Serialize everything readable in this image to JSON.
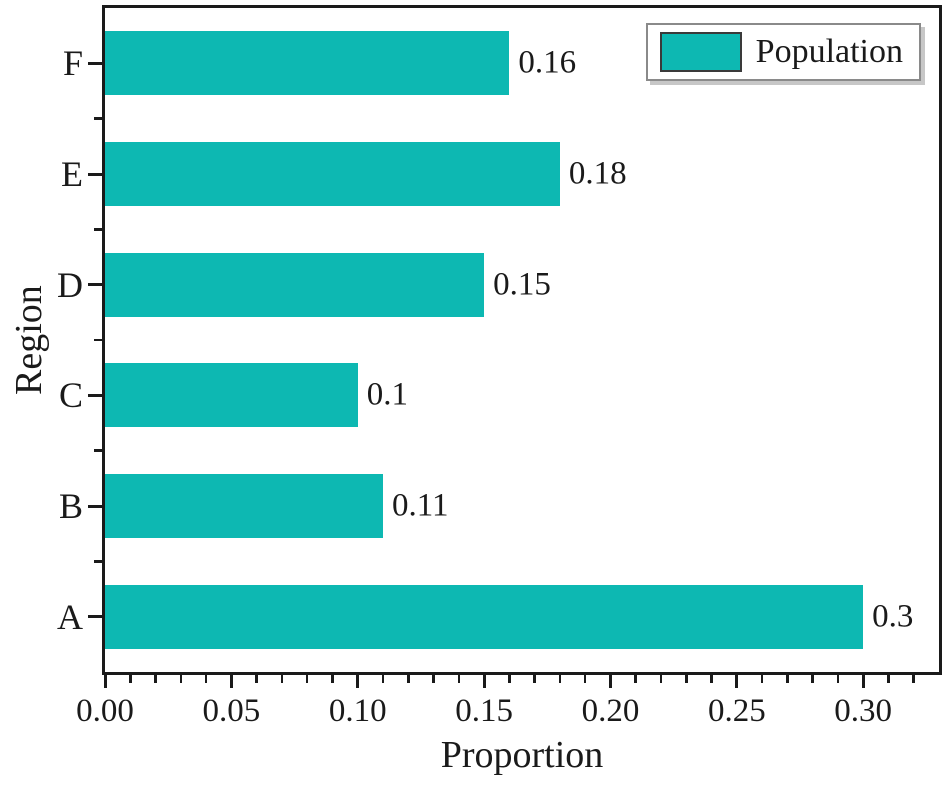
{
  "chart_data": {
    "type": "bar",
    "orientation": "horizontal",
    "title": "",
    "xlabel": "Proportion",
    "ylabel": "Region",
    "categories": [
      "A",
      "B",
      "C",
      "D",
      "E",
      "F"
    ],
    "series": [
      {
        "name": "Population",
        "values": [
          0.3,
          0.11,
          0.1,
          0.15,
          0.18,
          0.16
        ]
      }
    ],
    "value_labels": [
      "0.3",
      "0.11",
      "0.1",
      "0.15",
      "0.18",
      "0.16"
    ],
    "xlim": [
      0,
      0.33
    ],
    "x_major_ticks": [
      0,
      0.05,
      0.1,
      0.15,
      0.2,
      0.25,
      0.3
    ],
    "x_tick_labels": [
      "0.00",
      "0.05",
      "0.10",
      "0.15",
      "0.20",
      "0.25",
      "0.30"
    ],
    "x_minor_step": 0.01,
    "grid": false,
    "legend_position": "top-right",
    "colors": {
      "bar_fill": "#0db8b2",
      "axis": "#1a1a1a",
      "text": "#1a1a1a",
      "legend_border": "#8a8a8a"
    }
  }
}
